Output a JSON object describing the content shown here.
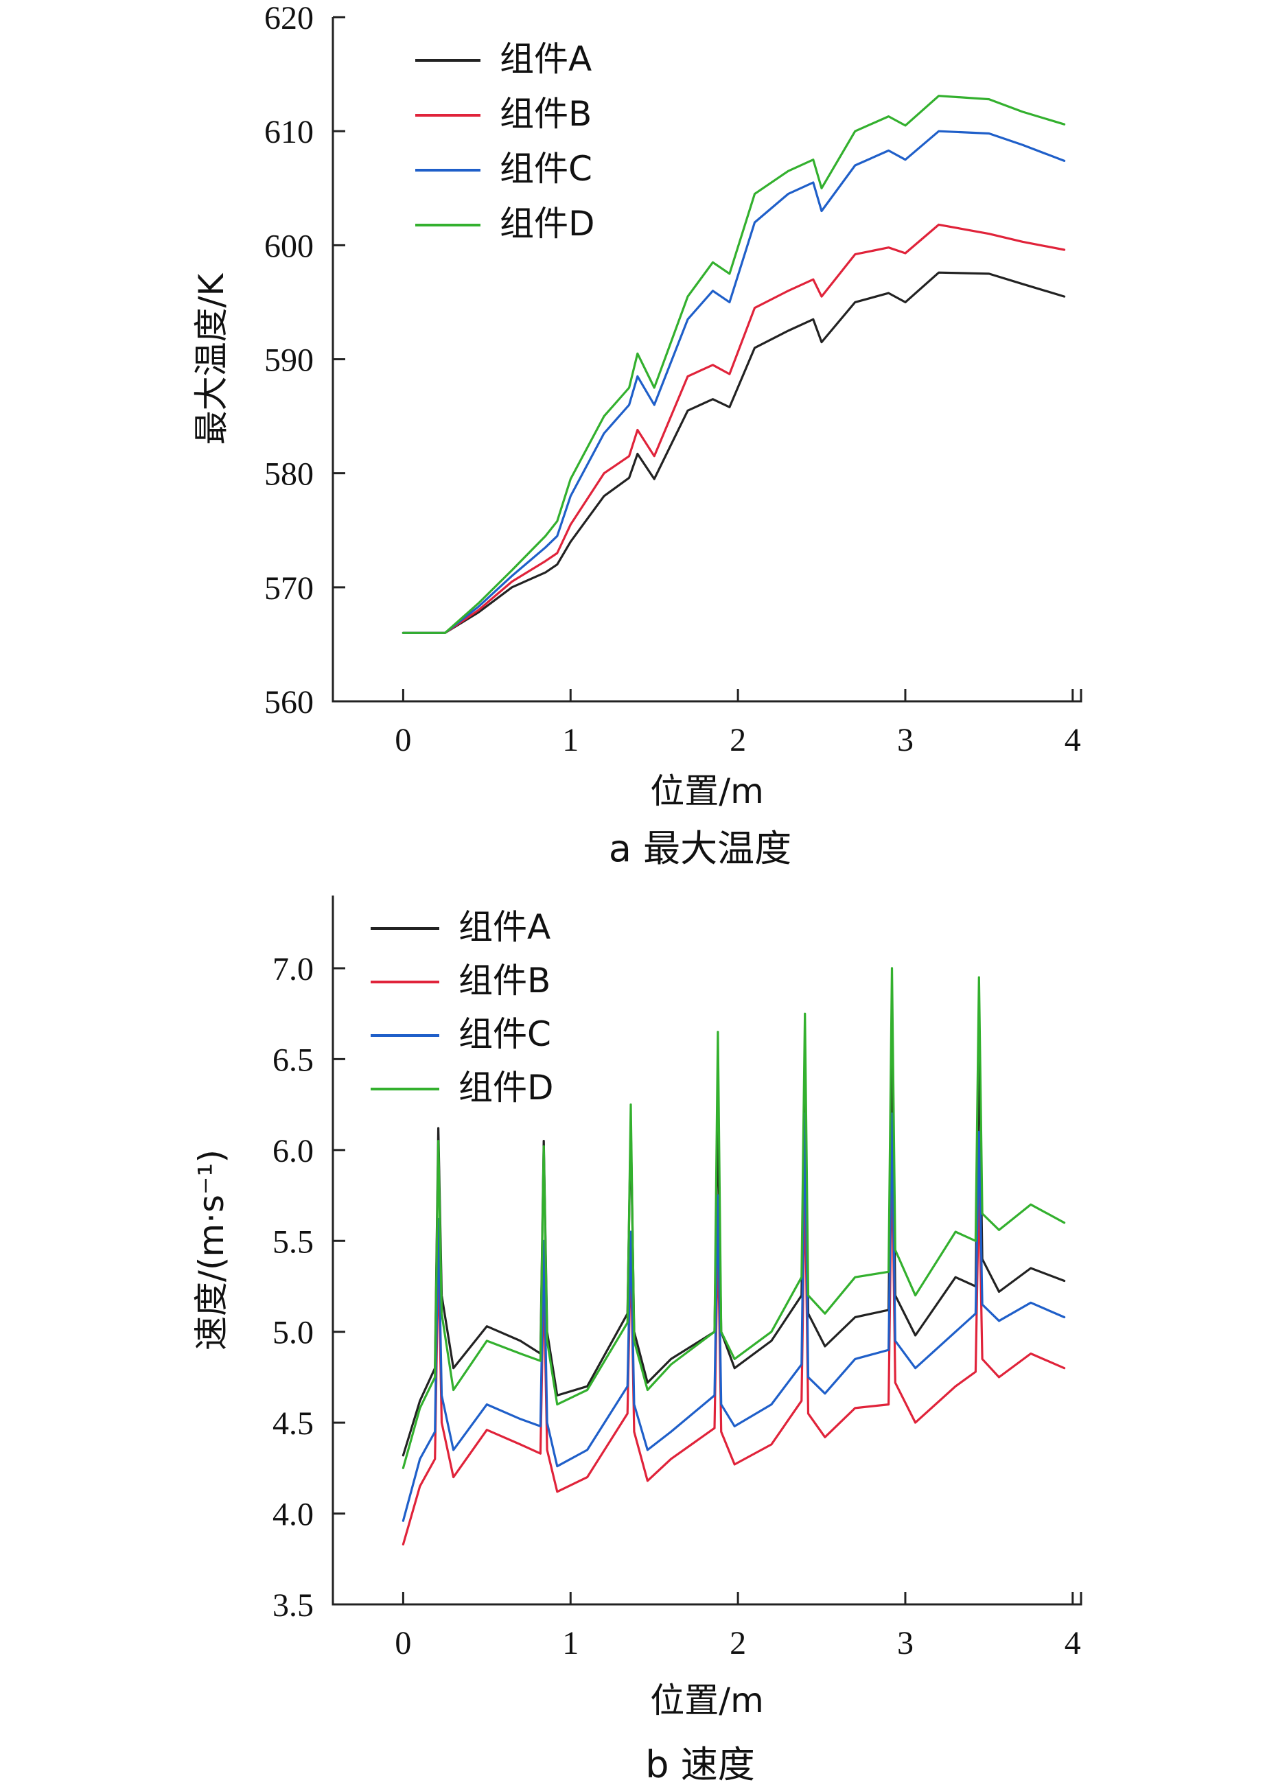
{
  "chart_data": [
    {
      "type": "line",
      "caption": "a  最大温度",
      "xlabel": "位置/m",
      "ylabel": "最大温度/K",
      "xlim": [
        -0.42,
        4.05
      ],
      "ylim": [
        560,
        620
      ],
      "xticks": [
        0,
        1,
        2,
        3,
        4
      ],
      "yticks": [
        560,
        570,
        580,
        590,
        600,
        610,
        620
      ],
      "legend_position": "top-left",
      "series": [
        {
          "name": "组件A",
          "color": "#222222",
          "x": [
            0,
            0.25,
            0.45,
            0.65,
            0.85,
            0.92,
            1.0,
            1.2,
            1.35,
            1.4,
            1.5,
            1.7,
            1.85,
            1.95,
            2.1,
            2.3,
            2.45,
            2.5,
            2.7,
            2.9,
            3.0,
            3.2,
            3.5,
            3.7,
            3.95
          ],
          "y": [
            566,
            566,
            567.8,
            570,
            571.3,
            572,
            574,
            578,
            579.6,
            581.7,
            579.5,
            585.5,
            586.5,
            585.8,
            591,
            592.5,
            593.5,
            591.5,
            595,
            595.8,
            595,
            597.6,
            597.5,
            596.6,
            595.5
          ]
        },
        {
          "name": "组件B",
          "color": "#e0233a",
          "x": [
            0,
            0.25,
            0.45,
            0.65,
            0.85,
            0.92,
            1.0,
            1.2,
            1.35,
            1.4,
            1.5,
            1.7,
            1.85,
            1.95,
            2.1,
            2.3,
            2.45,
            2.5,
            2.7,
            2.9,
            3.0,
            3.2,
            3.5,
            3.7,
            3.95
          ],
          "y": [
            566,
            566,
            568,
            570.5,
            572.3,
            573,
            575.5,
            580,
            581.5,
            583.8,
            581.5,
            588.5,
            589.5,
            588.7,
            594.5,
            596,
            597,
            595.5,
            599.2,
            599.8,
            599.3,
            601.8,
            601,
            600.3,
            599.6
          ]
        },
        {
          "name": "组件C",
          "color": "#1f5fc9",
          "x": [
            0,
            0.25,
            0.45,
            0.65,
            0.85,
            0.92,
            1.0,
            1.2,
            1.35,
            1.4,
            1.5,
            1.7,
            1.85,
            1.95,
            2.1,
            2.3,
            2.45,
            2.5,
            2.7,
            2.9,
            3.0,
            3.2,
            3.5,
            3.7,
            3.95
          ],
          "y": [
            566,
            566,
            568.3,
            571,
            573.5,
            574.5,
            578,
            583.5,
            586,
            588.5,
            586,
            593.5,
            596,
            595,
            602,
            604.5,
            605.5,
            603,
            607,
            608.3,
            607.5,
            610,
            609.8,
            608.8,
            607.4
          ]
        },
        {
          "name": "组件D",
          "color": "#33b02e",
          "x": [
            0,
            0.25,
            0.45,
            0.65,
            0.85,
            0.92,
            1.0,
            1.2,
            1.35,
            1.4,
            1.5,
            1.7,
            1.85,
            1.95,
            2.1,
            2.3,
            2.45,
            2.5,
            2.7,
            2.9,
            3.0,
            3.2,
            3.5,
            3.7,
            3.95
          ],
          "y": [
            566,
            566,
            568.6,
            571.5,
            574.5,
            575.8,
            579.5,
            585,
            587.5,
            590.5,
            587.5,
            595.5,
            598.5,
            597.5,
            604.5,
            606.5,
            607.5,
            605,
            610,
            611.3,
            610.5,
            613.1,
            612.8,
            611.7,
            610.6
          ]
        }
      ]
    },
    {
      "type": "line",
      "caption": "b  速度",
      "xlabel": "位置/m",
      "ylabel": "速度/(m·s⁻¹)",
      "xlim": [
        -0.42,
        4.05
      ],
      "ylim": [
        3.5,
        7.4
      ],
      "xticks": [
        0,
        1,
        2,
        3,
        4
      ],
      "yticks": [
        3.5,
        4.0,
        4.5,
        5.0,
        5.5,
        6.0,
        6.5,
        7.0
      ],
      "legend_position": "top-left",
      "series": [
        {
          "name": "组件A",
          "color": "#222222",
          "x": [
            0,
            0.1,
            0.19,
            0.21,
            0.23,
            0.3,
            0.5,
            0.7,
            0.82,
            0.84,
            0.86,
            0.92,
            1.1,
            1.34,
            1.36,
            1.38,
            1.46,
            1.6,
            1.86,
            1.88,
            1.9,
            1.98,
            2.2,
            2.38,
            2.4,
            2.42,
            2.52,
            2.7,
            2.9,
            2.92,
            2.94,
            3.06,
            3.3,
            3.42,
            3.44,
            3.46,
            3.56,
            3.75,
            3.95
          ],
          "y": [
            4.32,
            4.62,
            4.8,
            6.12,
            5.2,
            4.8,
            5.03,
            4.95,
            4.88,
            6.05,
            5.0,
            4.65,
            4.7,
            5.1,
            6.15,
            5.0,
            4.72,
            4.85,
            5.0,
            6.2,
            5.0,
            4.8,
            4.95,
            5.2,
            6.5,
            5.1,
            4.92,
            5.08,
            5.12,
            6.6,
            5.2,
            4.98,
            5.3,
            5.25,
            6.55,
            5.4,
            5.22,
            5.35,
            5.28
          ]
        },
        {
          "name": "组件B",
          "color": "#e0233a",
          "x": [
            0,
            0.1,
            0.19,
            0.21,
            0.23,
            0.3,
            0.5,
            0.7,
            0.82,
            0.84,
            0.86,
            0.92,
            1.1,
            1.34,
            1.36,
            1.38,
            1.46,
            1.6,
            1.86,
            1.88,
            1.9,
            1.98,
            2.2,
            2.38,
            2.4,
            2.42,
            2.52,
            2.7,
            2.9,
            2.92,
            2.94,
            3.06,
            3.3,
            3.42,
            3.44,
            3.46,
            3.56,
            3.75,
            3.95
          ],
          "y": [
            3.83,
            4.15,
            4.3,
            5.42,
            4.5,
            4.2,
            4.46,
            4.38,
            4.33,
            5.3,
            4.35,
            4.12,
            4.2,
            4.55,
            5.45,
            4.45,
            4.18,
            4.3,
            4.47,
            5.55,
            4.45,
            4.27,
            4.38,
            4.62,
            5.85,
            4.55,
            4.42,
            4.58,
            4.6,
            6.0,
            4.72,
            4.5,
            4.7,
            4.78,
            5.82,
            4.85,
            4.75,
            4.88,
            4.8
          ]
        },
        {
          "name": "组件C",
          "color": "#1f5fc9",
          "x": [
            0,
            0.1,
            0.19,
            0.21,
            0.23,
            0.3,
            0.5,
            0.7,
            0.82,
            0.84,
            0.86,
            0.92,
            1.1,
            1.34,
            1.36,
            1.38,
            1.46,
            1.6,
            1.86,
            1.88,
            1.9,
            1.98,
            2.2,
            2.38,
            2.4,
            2.42,
            2.52,
            2.7,
            2.9,
            2.92,
            2.94,
            3.06,
            3.3,
            3.42,
            3.44,
            3.46,
            3.56,
            3.75,
            3.95
          ],
          "y": [
            3.96,
            4.3,
            4.45,
            5.62,
            4.65,
            4.35,
            4.6,
            4.52,
            4.48,
            5.5,
            4.5,
            4.26,
            4.35,
            4.7,
            5.55,
            4.6,
            4.35,
            4.45,
            4.65,
            5.75,
            4.6,
            4.48,
            4.6,
            4.82,
            6.2,
            4.75,
            4.66,
            4.85,
            4.9,
            6.2,
            4.95,
            4.8,
            5.0,
            5.1,
            6.1,
            5.15,
            5.06,
            5.16,
            5.08
          ]
        },
        {
          "name": "组件D",
          "color": "#33b02e",
          "x": [
            0,
            0.1,
            0.19,
            0.21,
            0.23,
            0.3,
            0.5,
            0.7,
            0.82,
            0.84,
            0.86,
            0.92,
            1.1,
            1.34,
            1.36,
            1.38,
            1.46,
            1.6,
            1.86,
            1.88,
            1.9,
            1.98,
            2.2,
            2.38,
            2.4,
            2.42,
            2.52,
            2.7,
            2.9,
            2.92,
            2.94,
            3.06,
            3.3,
            3.42,
            3.44,
            3.46,
            3.56,
            3.75,
            3.95
          ],
          "y": [
            4.25,
            4.58,
            4.75,
            6.05,
            5.1,
            4.68,
            4.95,
            4.88,
            4.84,
            6.02,
            4.95,
            4.6,
            4.68,
            5.05,
            6.25,
            4.95,
            4.68,
            4.82,
            5.0,
            6.65,
            5.0,
            4.85,
            5.0,
            5.3,
            6.75,
            5.2,
            5.1,
            5.3,
            5.33,
            7.0,
            5.45,
            5.2,
            5.55,
            5.5,
            6.95,
            5.65,
            5.56,
            5.7,
            5.6
          ]
        }
      ]
    }
  ]
}
